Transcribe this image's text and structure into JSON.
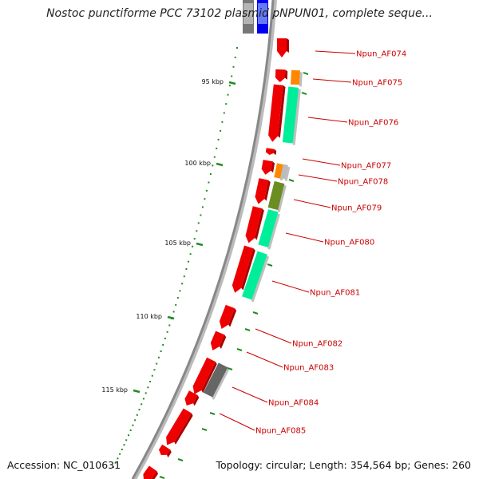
{
  "title": "Nostoc punctiforme PCC 73102 plasmid pNPUN01, complete seque...",
  "accession": "Accession: NC_010631",
  "topology": "Topology: circular; Length: 354,564 bp; Genes: 260",
  "tick_labels": [
    "95 kbp",
    "100 kbp",
    "105 kbp",
    "110 kbp",
    "115 kbp"
  ],
  "genes": [
    {
      "label": "Npun_AF074",
      "color": "#ee0000"
    },
    {
      "label": "Npun_AF075",
      "color": "#ff8800"
    },
    {
      "label": "Npun_AF076",
      "color": "#00ee99"
    },
    {
      "label": "Npun_AF077",
      "color": "#ee0000"
    },
    {
      "label": "Npun_AF078",
      "color": "#bbbbbb"
    },
    {
      "label": "Npun_AF079",
      "color": "#6b8e23"
    },
    {
      "label": "Npun_AF080",
      "color": "#00ee99"
    },
    {
      "label": "Npun_AF081",
      "color": "#00ee99"
    },
    {
      "label": "Npun_AF082",
      "color": "#ee0000"
    },
    {
      "label": "Npun_AF083",
      "color": "#ee0000"
    },
    {
      "label": "Npun_AF084",
      "color": "#666666"
    },
    {
      "label": "Npun_AF085",
      "color": "#ee0000"
    }
  ],
  "colors": {
    "cds": "#ee0000",
    "cog_green": "#00ee99",
    "cog_orange": "#ff8800",
    "cog_olive": "#6b8e23",
    "cog_grey": "#666666",
    "cog_light": "#bbbbbb",
    "cog_blue": "#0000ee",
    "backbone": "#888888",
    "ticks": "#228b22",
    "label": "#cc0000"
  }
}
